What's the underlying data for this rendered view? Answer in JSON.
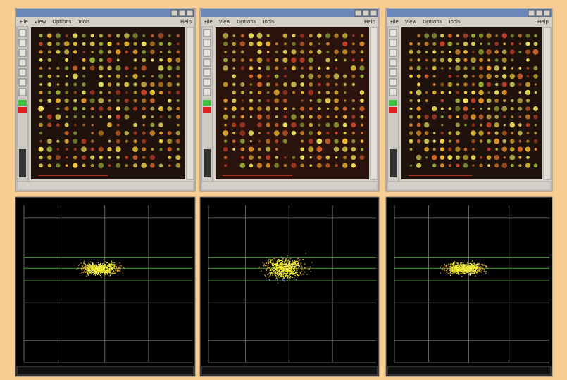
{
  "windows": [
    {
      "menu": [
        "File",
        "View",
        "Options",
        "Tools"
      ],
      "help": "Help"
    },
    {
      "menu": [
        "File",
        "View",
        "Options",
        "Tools"
      ],
      "help": "Help"
    },
    {
      "menu": [
        "File",
        "View",
        "Options",
        "Tools"
      ],
      "help": "Help"
    }
  ]
}
